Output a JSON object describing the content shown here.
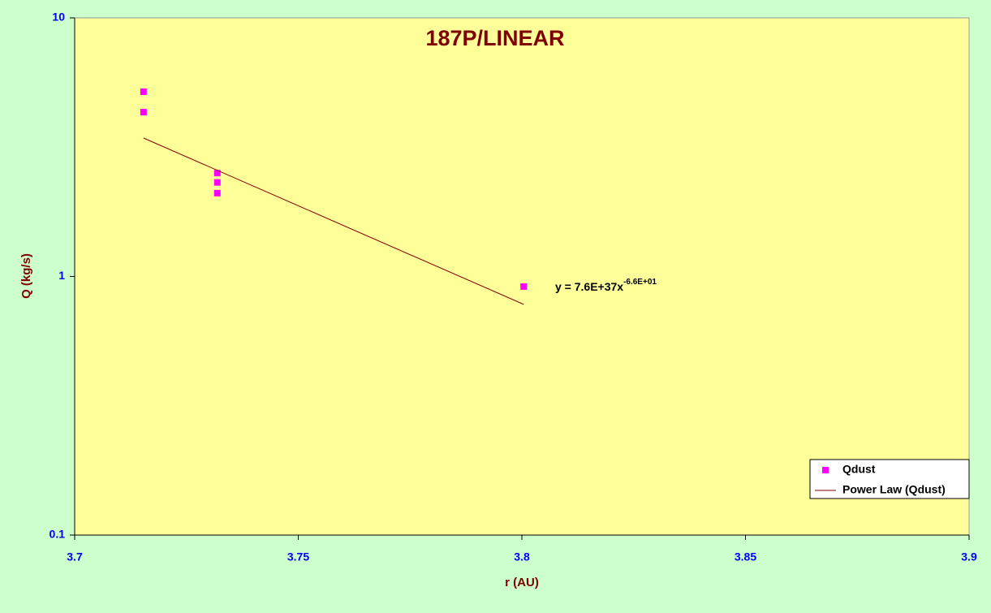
{
  "chart_data": {
    "type": "scatter",
    "title": "187P/LINEAR",
    "xlabel": "r (AU)",
    "ylabel": "Q (kg/s)",
    "xlim": [
      3.7,
      3.9
    ],
    "xticks": [
      3.7,
      3.75,
      3.8,
      3.85,
      3.9
    ],
    "ylim": [
      0.1,
      10
    ],
    "yticks": [
      0.1,
      1,
      10
    ],
    "yscale": "log",
    "grid": false,
    "legend": "lower right",
    "series": [
      {
        "name": "Qdust",
        "type": "scatter",
        "color": "#ff00ff",
        "x": [
          3.7154,
          3.7154,
          3.7319,
          3.7319,
          3.7319,
          3.8004
        ],
        "values": [
          5.18,
          4.32,
          2.51,
          2.31,
          2.1,
          0.914
        ]
      },
      {
        "name": "Power Law (Qdust)",
        "type": "line",
        "color": "#800000",
        "x": [
          3.7154,
          3.8004
        ],
        "values": [
          3.43,
          0.78
        ]
      }
    ],
    "annotation": {
      "text": "y = 7.6E+37x",
      "exponent": "-6.6E+01"
    }
  }
}
